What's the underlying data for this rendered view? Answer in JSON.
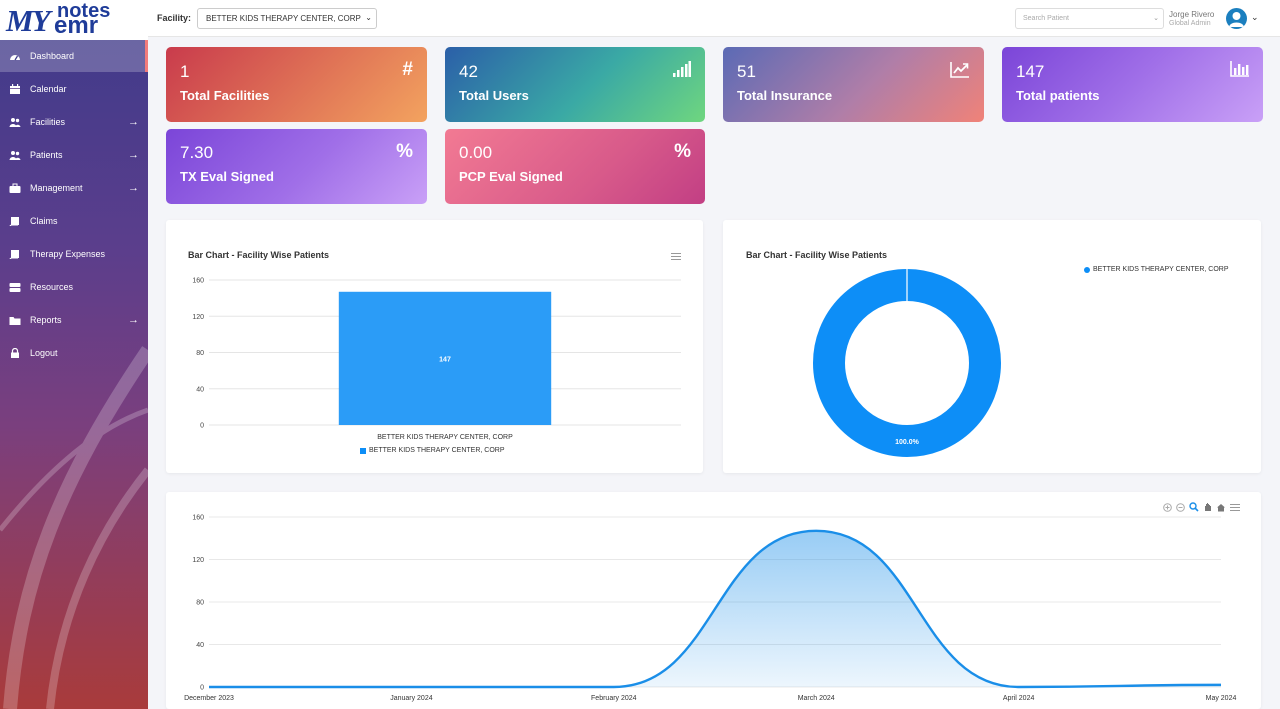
{
  "brand": {
    "my": "MY",
    "notes": "notes",
    "emr": "emr"
  },
  "sidebar": {
    "items": [
      {
        "label": "Dashboard",
        "icon": "dashboard-icon"
      },
      {
        "label": "Calendar",
        "icon": "calendar-icon"
      },
      {
        "label": "Facilities",
        "icon": "users-icon",
        "arrow": "→"
      },
      {
        "label": "Patients",
        "icon": "users-icon",
        "arrow": "→"
      },
      {
        "label": "Management",
        "icon": "briefcase-icon",
        "arrow": "→"
      },
      {
        "label": "Claims",
        "icon": "book-icon"
      },
      {
        "label": "Therapy Expenses",
        "icon": "book-icon"
      },
      {
        "label": "Resources",
        "icon": "database-icon"
      },
      {
        "label": "Reports",
        "icon": "folder-icon",
        "arrow": "→"
      },
      {
        "label": "Logout",
        "icon": "lock-icon"
      }
    ]
  },
  "header": {
    "facility_label": "Facility:",
    "facility_value": "BETTER KIDS THERAPY CENTER, CORP",
    "search_placeholder": "Search Patient",
    "user_name": "Jorge Rivero",
    "user_role": "Global Admin"
  },
  "stats": [
    {
      "value": "1",
      "label": "Total Facilities",
      "icon": "#"
    },
    {
      "value": "42",
      "label": "Total Users",
      "icon": "signal-icon"
    },
    {
      "value": "51",
      "label": "Total Insurance",
      "icon": "trend-icon"
    },
    {
      "value": "147",
      "label": "Total patients",
      "icon": "bar-chart-icon"
    },
    {
      "value": "7.30",
      "label": "TX Eval Signed",
      "icon": "%"
    },
    {
      "value": "0.00",
      "label": "PCP Eval Signed",
      "icon": "%"
    }
  ],
  "chart_data": [
    {
      "type": "bar",
      "title": "Bar Chart - Facility Wise Patients",
      "categories": [
        "BETTER KIDS THERAPY CENTER, CORP"
      ],
      "values": [
        147
      ],
      "data_labels": [
        "147"
      ],
      "legend": [
        "BETTER KIDS THERAPY CENTER, CORP"
      ],
      "yticks": [
        "0",
        "40",
        "80",
        "120",
        "160"
      ],
      "ylim": [
        0,
        160
      ],
      "color": "#2b9cf7"
    },
    {
      "type": "pie",
      "title": "Bar Chart - Facility Wise Patients",
      "labels": [
        "BETTER KIDS THERAPY CENTER, CORP"
      ],
      "values": [
        100.0
      ],
      "data_labels": [
        "100.0%"
      ],
      "color": "#0d8ef7"
    },
    {
      "type": "area",
      "x": [
        "December 2023",
        "January 2024",
        "February 2024",
        "March 2024",
        "April 2024",
        "May 2024"
      ],
      "values": [
        0,
        0,
        0,
        147,
        0,
        2
      ],
      "yticks": [
        "0",
        "40",
        "80",
        "120",
        "160"
      ],
      "ylim": [
        0,
        160
      ],
      "color": "#1a8ee8"
    }
  ]
}
